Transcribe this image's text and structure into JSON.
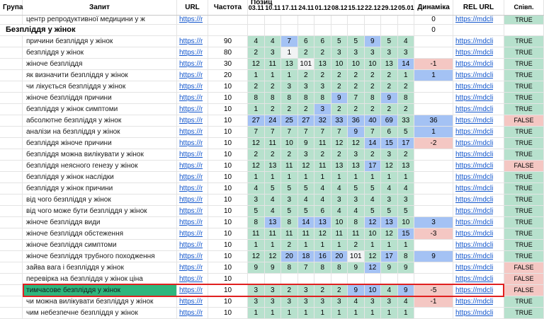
{
  "header": {
    "columns": {
      "group": "Група",
      "query": "Запит",
      "url": "URL",
      "frequency": "Частота",
      "positions": "Позиц",
      "dynamics": "Динаміка",
      "rel_url": "REL URL",
      "match": "Співп."
    },
    "dates": [
      "03.11",
      "10.11",
      "17.11",
      "24.11",
      "01.12",
      "08.12",
      "15.12",
      "22.12",
      "29.12",
      "05.01"
    ]
  },
  "links": {
    "url": "https://r",
    "rel": "https://mdcli"
  },
  "colors": {
    "cell_green": "#b7e1cd",
    "cell_blue": "#a4c2f4",
    "cell_gray": "#f1f3f4",
    "cell_salmon": "#f4c7c3",
    "highlight_green": "#2eb67d",
    "link_blue": "#1155cc",
    "red_border": "#e02020"
  },
  "rows": [
    {
      "type": "partial",
      "q": "центр репродуктивної медицини у ж",
      "f": "",
      "dyn": "0",
      "m": "TRUE"
    },
    {
      "type": "group",
      "q": "Безпліддя у жінок",
      "f": "",
      "dyn": "0",
      "m": ""
    },
    {
      "q": "причини безпліддя у жінок",
      "f": "90",
      "cells": [
        "4:g",
        "4:g",
        "7:b",
        "6:g",
        "6:g",
        "5:g",
        "5:g",
        "9:b",
        "5:g",
        "4:g"
      ],
      "dyn": "",
      "m": "TRUE"
    },
    {
      "q": "безпліддя у жінок",
      "f": "80",
      "cells": [
        "2:g",
        "3:g",
        "1:w",
        "2:g",
        "2:g",
        "3:g",
        "3:g",
        "3:g",
        "3:g",
        "3:g"
      ],
      "dyn": "",
      "m": "TRUE"
    },
    {
      "q": "жіноче безпліддя",
      "f": "30",
      "cells": [
        "12:g",
        "11:g",
        "13:g",
        "101:w",
        "13:g",
        "10:g",
        "10:g",
        "10:g",
        "13:g",
        "14:b"
      ],
      "dyn": "-1:s",
      "m": "TRUE"
    },
    {
      "q": "як визначити безпліддя у жінок",
      "f": "20",
      "cells": [
        "1:g",
        "1:g",
        "1:g",
        "2:g",
        "2:g",
        "2:g",
        "2:g",
        "2:g",
        "2:g",
        "1:g"
      ],
      "dyn": "1:b",
      "m": "TRUE"
    },
    {
      "q": "чи лікується безпліддя у жінок",
      "f": "10",
      "cells": [
        "2:g",
        "2:g",
        "3:g",
        "3:g",
        "3:g",
        "2:g",
        "2:g",
        "2:g",
        "2:g",
        "2:g"
      ],
      "dyn": "",
      "m": "TRUE"
    },
    {
      "q": "жіноче безпліддя причини",
      "f": "10",
      "cells": [
        "8:g",
        "8:g",
        "8:g",
        "8:g",
        "8:g",
        "9:b",
        "7:g",
        "8:g",
        "9:b",
        "8:g"
      ],
      "dyn": "",
      "m": "TRUE"
    },
    {
      "q": "безпліддя у жінок симптоми",
      "f": "10",
      "cells": [
        "1:g",
        "2:g",
        "2:g",
        "2:g",
        "3:b",
        "2:g",
        "2:g",
        "2:g",
        "2:g",
        "2:g"
      ],
      "dyn": "",
      "m": "TRUE"
    },
    {
      "q": "абсолютне безпліддя у жінок",
      "f": "10",
      "cells": [
        "27:b",
        "24:b",
        "25:b",
        "27:b",
        "32:b",
        "33:b",
        "36:b",
        "40:b",
        "69:b",
        "33:g"
      ],
      "dyn": "36:b",
      "m": "FALSE"
    },
    {
      "q": "аналізи на безпліддя у жінок",
      "f": "10",
      "cells": [
        "7:g",
        "7:g",
        "7:g",
        "7:g",
        "7:g",
        "7:g",
        "9:b",
        "7:g",
        "6:g",
        "5:g"
      ],
      "dyn": "1:b",
      "m": "TRUE"
    },
    {
      "q": "безпліддя жіноче причини",
      "f": "10",
      "cells": [
        "12:g",
        "11:g",
        "10:g",
        "9:g",
        "11:g",
        "12:g",
        "12:g",
        "14:b",
        "15:b",
        "17:b"
      ],
      "dyn": "-2:s",
      "m": "TRUE"
    },
    {
      "q": "безпліддя можна вилікувати у жінок",
      "f": "10",
      "cells": [
        "2:g",
        "2:g",
        "2:g",
        "3:g",
        "2:g",
        "2:g",
        "3:g",
        "2:g",
        "3:g",
        "2:g"
      ],
      "dyn": "",
      "m": "TRUE"
    },
    {
      "q": "безпліддя неясного генезу у жінок",
      "f": "10",
      "cells": [
        "12:g",
        "13:g",
        "11:g",
        "12:g",
        "11:g",
        "13:g",
        "13:g",
        "17:b",
        "12:g",
        "13:g"
      ],
      "dyn": "",
      "m": "FALSE"
    },
    {
      "q": "безпліддя у жінок наслідки",
      "f": "10",
      "cells": [
        "1:g",
        "1:g",
        "1:g",
        "1:g",
        "1:g",
        "1:g",
        "1:g",
        "1:g",
        "1:g",
        "1:g"
      ],
      "dyn": "",
      "m": "TRUE"
    },
    {
      "q": "безпліддя у жінок причини",
      "f": "10",
      "cells": [
        "4:g",
        "5:g",
        "5:g",
        "5:g",
        "4:g",
        "4:g",
        "5:g",
        "5:g",
        "4:g",
        "4:g"
      ],
      "dyn": "",
      "m": "TRUE"
    },
    {
      "q": "від чого безпліддя у жінок",
      "f": "10",
      "cells": [
        "3:g",
        "4:g",
        "3:g",
        "4:g",
        "4:g",
        "3:g",
        "3:g",
        "4:g",
        "3:g",
        "3:g"
      ],
      "dyn": "",
      "m": "TRUE"
    },
    {
      "q": "від чого може бути безпліддя у жінок",
      "f": "10",
      "cells": [
        "5:g",
        "4:g",
        "5:g",
        "5:g",
        "6:g",
        "4:g",
        "4:g",
        "5:g",
        "5:g",
        "5:g"
      ],
      "dyn": "",
      "m": "TRUE"
    },
    {
      "q": "жіноче безпліддя види",
      "f": "10",
      "cells": [
        "8:g",
        "13:b",
        "8:g",
        "14:b",
        "13:b",
        "10:g",
        "8:g",
        "12:b",
        "13:b",
        "10:g"
      ],
      "dyn": "3:b",
      "m": "TRUE"
    },
    {
      "q": "жіноче безпліддя обстеження",
      "f": "10",
      "cells": [
        "11:g",
        "11:g",
        "11:g",
        "11:g",
        "12:g",
        "11:g",
        "11:g",
        "10:g",
        "12:g",
        "15:b"
      ],
      "dyn": "-3:s",
      "m": "TRUE"
    },
    {
      "q": "жіноче безпліддя симптоми",
      "f": "10",
      "cells": [
        "1:g",
        "1:g",
        "2:g",
        "1:g",
        "1:g",
        "1:g",
        "2:g",
        "1:g",
        "1:g",
        "1:g"
      ],
      "dyn": "",
      "m": "TRUE"
    },
    {
      "q": "жіноче безпліддя трубного походження",
      "f": "10",
      "cells": [
        "12:g",
        "12:g",
        "20:b",
        "18:b",
        "16:b",
        "20:b",
        "101:w",
        "12:g",
        "17:b",
        "8:g"
      ],
      "dyn": "9:b",
      "m": "TRUE"
    },
    {
      "q": "зайва вага і безпліддя у жінок",
      "f": "10",
      "cells": [
        "9:g",
        "9:g",
        "8:g",
        "7:g",
        "8:g",
        "8:g",
        "9:g",
        "12:b",
        "9:g",
        "9:g"
      ],
      "dyn": "",
      "m": "FALSE"
    },
    {
      "q": "перевірка на безпліддя у жінок ціна",
      "f": "10",
      "cells": [
        "",
        "",
        "",
        "",
        "",
        "",
        "",
        "",
        "",
        ""
      ],
      "dyn": "",
      "m": "FALSE"
    },
    {
      "q": "тимчасове безпліддя у жінок",
      "f": "10",
      "cells": [
        "3:g",
        "3:g",
        "2:g",
        "3:g",
        "2:g",
        "2:g",
        "9:b",
        "10:b",
        "4:g",
        "9:b"
      ],
      "dyn": "-5:s",
      "m": "FALSE",
      "hl": true
    },
    {
      "q": "чи можна вилікувати безпліддя у жінок",
      "f": "10",
      "cells": [
        "3:g",
        "3:g",
        "3:g",
        "3:g",
        "3:g",
        "3:g",
        "4:g",
        "3:g",
        "3:g",
        "4:g"
      ],
      "dyn": "-1:s",
      "m": "TRUE"
    },
    {
      "q": "чим небезпечне безпліддя у жінок",
      "f": "10",
      "cells": [
        "1:g",
        "1:g",
        "1:g",
        "1:g",
        "1:g",
        "1:g",
        "1:g",
        "1:g",
        "1:g",
        "1:g"
      ],
      "dyn": "",
      "m": "TRUE"
    }
  ]
}
